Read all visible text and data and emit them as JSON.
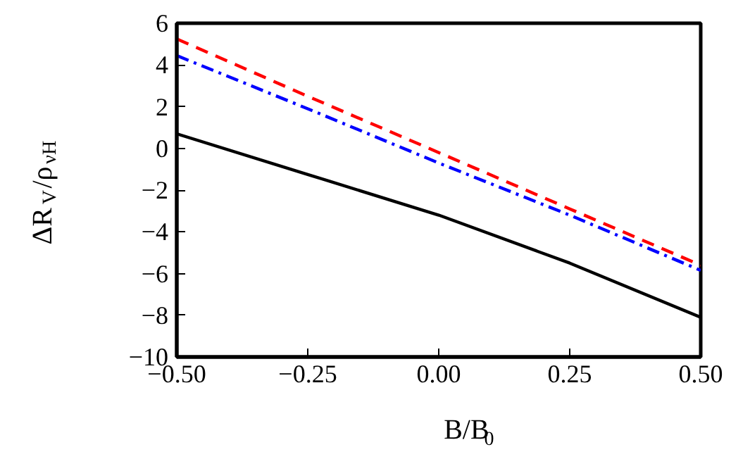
{
  "chart_data": {
    "type": "line",
    "xlabel": "B/B$_{0}$",
    "ylabel": "ΔR$_{V}$/ρ$_{νH}$",
    "x": [
      -0.5,
      -0.25,
      0,
      0.25,
      0.5
    ],
    "series": [
      {
        "color": "#000000",
        "line_style": "solid",
        "values": [
          0.7,
          -1.25,
          -3.2,
          -5.5,
          -8.1
        ]
      },
      {
        "color": "#ff0000",
        "line_style": "dashed",
        "values": [
          5.25,
          2.5,
          -0.2,
          -2.9,
          -5.6
        ]
      },
      {
        "color": "#0000ff",
        "line_style": "dashdot",
        "values": [
          4.45,
          1.9,
          -0.7,
          -3.2,
          -5.85
        ]
      }
    ],
    "xlim": [
      -0.5,
      0.5
    ],
    "ylim": [
      -10,
      6
    ],
    "xticks": [
      {
        "value": -0.5,
        "label": "−0.50"
      },
      {
        "value": -0.25,
        "label": "−0.25"
      },
      {
        "value": 0,
        "label": "0.00"
      },
      {
        "value": 0.25,
        "label": "0.25"
      },
      {
        "value": 0.5,
        "label": "0.50"
      }
    ],
    "yticks": [
      {
        "value": -10,
        "label": "−10"
      },
      {
        "value": -8,
        "label": "−8"
      },
      {
        "value": -6,
        "label": "−6"
      },
      {
        "value": -4,
        "label": "−4"
      },
      {
        "value": -2,
        "label": "−2"
      },
      0,
      2,
      4,
      6
    ],
    "grid": false,
    "marker": "none"
  }
}
